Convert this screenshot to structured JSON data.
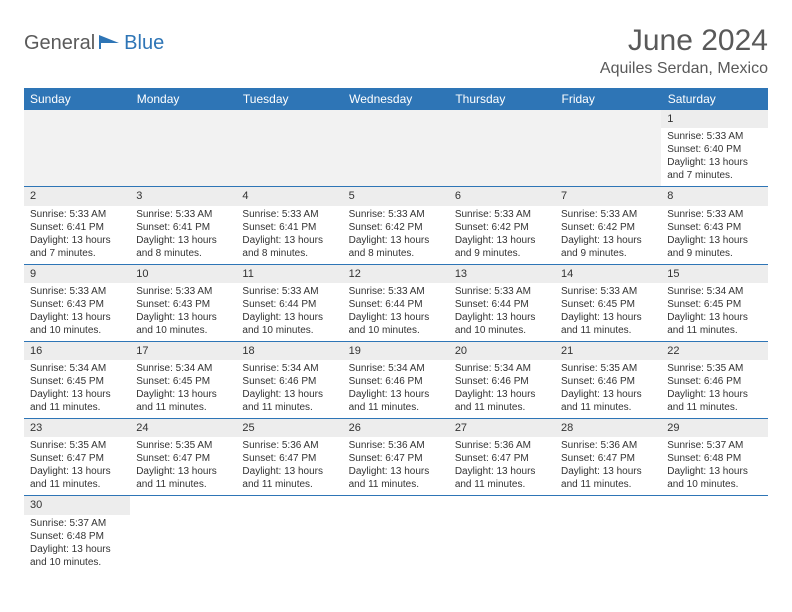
{
  "logo": {
    "text1": "General",
    "text2": "Blue",
    "icon_color": "#2e75b6",
    "text1_color": "#5a5a5a"
  },
  "title": "June 2024",
  "location": "Aquiles Serdan, Mexico",
  "colors": {
    "header_bg": "#2e75b6",
    "header_text": "#ffffff",
    "daynum_bg": "#ededed",
    "cell_border": "#2e75b6",
    "title_color": "#595959"
  },
  "day_headers": [
    "Sunday",
    "Monday",
    "Tuesday",
    "Wednesday",
    "Thursday",
    "Friday",
    "Saturday"
  ],
  "weeks": [
    [
      null,
      null,
      null,
      null,
      null,
      null,
      {
        "n": "1",
        "sr": "5:33 AM",
        "ss": "6:40 PM",
        "dl": "13 hours and 7 minutes."
      }
    ],
    [
      {
        "n": "2",
        "sr": "5:33 AM",
        "ss": "6:41 PM",
        "dl": "13 hours and 7 minutes."
      },
      {
        "n": "3",
        "sr": "5:33 AM",
        "ss": "6:41 PM",
        "dl": "13 hours and 8 minutes."
      },
      {
        "n": "4",
        "sr": "5:33 AM",
        "ss": "6:41 PM",
        "dl": "13 hours and 8 minutes."
      },
      {
        "n": "5",
        "sr": "5:33 AM",
        "ss": "6:42 PM",
        "dl": "13 hours and 8 minutes."
      },
      {
        "n": "6",
        "sr": "5:33 AM",
        "ss": "6:42 PM",
        "dl": "13 hours and 9 minutes."
      },
      {
        "n": "7",
        "sr": "5:33 AM",
        "ss": "6:42 PM",
        "dl": "13 hours and 9 minutes."
      },
      {
        "n": "8",
        "sr": "5:33 AM",
        "ss": "6:43 PM",
        "dl": "13 hours and 9 minutes."
      }
    ],
    [
      {
        "n": "9",
        "sr": "5:33 AM",
        "ss": "6:43 PM",
        "dl": "13 hours and 10 minutes."
      },
      {
        "n": "10",
        "sr": "5:33 AM",
        "ss": "6:43 PM",
        "dl": "13 hours and 10 minutes."
      },
      {
        "n": "11",
        "sr": "5:33 AM",
        "ss": "6:44 PM",
        "dl": "13 hours and 10 minutes."
      },
      {
        "n": "12",
        "sr": "5:33 AM",
        "ss": "6:44 PM",
        "dl": "13 hours and 10 minutes."
      },
      {
        "n": "13",
        "sr": "5:33 AM",
        "ss": "6:44 PM",
        "dl": "13 hours and 10 minutes."
      },
      {
        "n": "14",
        "sr": "5:33 AM",
        "ss": "6:45 PM",
        "dl": "13 hours and 11 minutes."
      },
      {
        "n": "15",
        "sr": "5:34 AM",
        "ss": "6:45 PM",
        "dl": "13 hours and 11 minutes."
      }
    ],
    [
      {
        "n": "16",
        "sr": "5:34 AM",
        "ss": "6:45 PM",
        "dl": "13 hours and 11 minutes."
      },
      {
        "n": "17",
        "sr": "5:34 AM",
        "ss": "6:45 PM",
        "dl": "13 hours and 11 minutes."
      },
      {
        "n": "18",
        "sr": "5:34 AM",
        "ss": "6:46 PM",
        "dl": "13 hours and 11 minutes."
      },
      {
        "n": "19",
        "sr": "5:34 AM",
        "ss": "6:46 PM",
        "dl": "13 hours and 11 minutes."
      },
      {
        "n": "20",
        "sr": "5:34 AM",
        "ss": "6:46 PM",
        "dl": "13 hours and 11 minutes."
      },
      {
        "n": "21",
        "sr": "5:35 AM",
        "ss": "6:46 PM",
        "dl": "13 hours and 11 minutes."
      },
      {
        "n": "22",
        "sr": "5:35 AM",
        "ss": "6:46 PM",
        "dl": "13 hours and 11 minutes."
      }
    ],
    [
      {
        "n": "23",
        "sr": "5:35 AM",
        "ss": "6:47 PM",
        "dl": "13 hours and 11 minutes."
      },
      {
        "n": "24",
        "sr": "5:35 AM",
        "ss": "6:47 PM",
        "dl": "13 hours and 11 minutes."
      },
      {
        "n": "25",
        "sr": "5:36 AM",
        "ss": "6:47 PM",
        "dl": "13 hours and 11 minutes."
      },
      {
        "n": "26",
        "sr": "5:36 AM",
        "ss": "6:47 PM",
        "dl": "13 hours and 11 minutes."
      },
      {
        "n": "27",
        "sr": "5:36 AM",
        "ss": "6:47 PM",
        "dl": "13 hours and 11 minutes."
      },
      {
        "n": "28",
        "sr": "5:36 AM",
        "ss": "6:47 PM",
        "dl": "13 hours and 11 minutes."
      },
      {
        "n": "29",
        "sr": "5:37 AM",
        "ss": "6:48 PM",
        "dl": "13 hours and 10 minutes."
      }
    ],
    [
      {
        "n": "30",
        "sr": "5:37 AM",
        "ss": "6:48 PM",
        "dl": "13 hours and 10 minutes."
      },
      null,
      null,
      null,
      null,
      null,
      null
    ]
  ],
  "labels": {
    "sunrise": "Sunrise:",
    "sunset": "Sunset:",
    "daylight": "Daylight:"
  }
}
